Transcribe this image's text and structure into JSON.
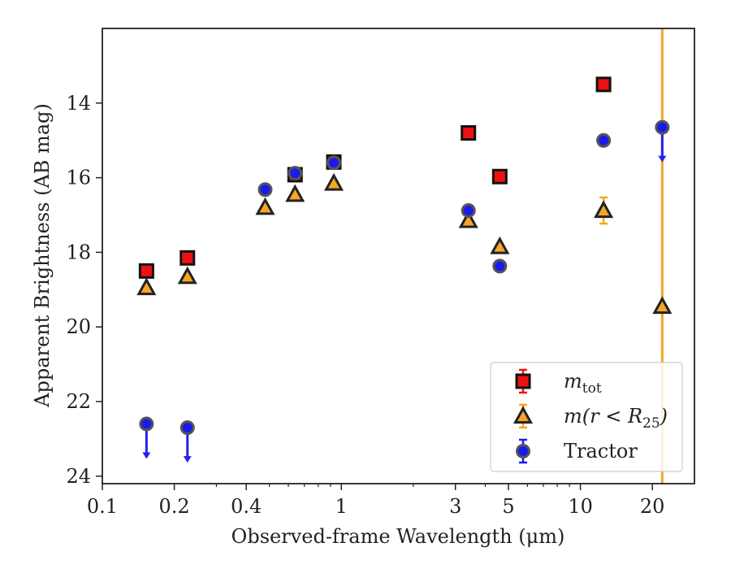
{
  "chart_data": {
    "type": "scatter",
    "xlabel": "Observed-frame Wavelength (μm)",
    "ylabel": "Apparent Brightness (AB mag)",
    "xscale": "log",
    "xlim": [
      0.1,
      30
    ],
    "ylim": [
      24.2,
      12.0
    ],
    "y_inverted": true,
    "xticks": [
      {
        "value": 0.1,
        "label": "0.1"
      },
      {
        "value": 0.2,
        "label": "0.2"
      },
      {
        "value": 0.4,
        "label": "0.4"
      },
      {
        "value": 1,
        "label": "1"
      },
      {
        "value": 3,
        "label": "3"
      },
      {
        "value": 5,
        "label": "5"
      },
      {
        "value": 10,
        "label": "10"
      },
      {
        "value": 20,
        "label": "20"
      }
    ],
    "yticks": [
      {
        "value": 14,
        "label": "14"
      },
      {
        "value": 16,
        "label": "16"
      },
      {
        "value": 18,
        "label": "18"
      },
      {
        "value": 20,
        "label": "20"
      },
      {
        "value": 22,
        "label": "22"
      },
      {
        "value": 24,
        "label": "24"
      }
    ],
    "vline": {
      "x": 22.0,
      "color": "#f5a623"
    },
    "legend_position": "lower right",
    "series": [
      {
        "name": "m_tot",
        "legend_main": "m",
        "legend_sub": "tot",
        "marker": "square",
        "fill": "#ee1111",
        "edge": "#111111",
        "points": [
          {
            "x": 0.153,
            "y": 18.5
          },
          {
            "x": 0.227,
            "y": 18.15
          },
          {
            "x": 0.64,
            "y": 15.92
          },
          {
            "x": 0.93,
            "y": 15.58
          },
          {
            "x": 3.4,
            "y": 14.8
          },
          {
            "x": 4.6,
            "y": 15.97
          },
          {
            "x": 12.5,
            "y": 13.5
          }
        ]
      },
      {
        "name": "m(r<R25)",
        "legend_main": "m(r < R",
        "legend_sub": "25",
        "legend_tail": ")",
        "marker": "triangle",
        "fill": "#f5a623",
        "edge": "#222222",
        "points": [
          {
            "x": 0.153,
            "y": 18.95
          },
          {
            "x": 0.227,
            "y": 18.65
          },
          {
            "x": 0.48,
            "y": 16.8
          },
          {
            "x": 0.64,
            "y": 16.45
          },
          {
            "x": 0.93,
            "y": 16.15
          },
          {
            "x": 3.4,
            "y": 17.15
          },
          {
            "x": 4.6,
            "y": 17.85
          },
          {
            "x": 12.5,
            "y": 16.88,
            "err": 0.35
          },
          {
            "x": 22.0,
            "y": 19.45
          }
        ]
      },
      {
        "name": "Tractor",
        "legend_main": "Tractor",
        "marker": "circle",
        "fill": "#1a1aee",
        "edge": "#555555",
        "points": [
          {
            "x": 0.153,
            "y": 22.6,
            "upper_limit": true
          },
          {
            "x": 0.227,
            "y": 22.7,
            "upper_limit": true
          },
          {
            "x": 0.48,
            "y": 16.32
          },
          {
            "x": 0.64,
            "y": 15.88
          },
          {
            "x": 0.93,
            "y": 15.6
          },
          {
            "x": 3.4,
            "y": 16.88
          },
          {
            "x": 4.6,
            "y": 18.37
          },
          {
            "x": 12.5,
            "y": 15.0
          },
          {
            "x": 22.0,
            "y": 14.65,
            "upper_limit": true
          }
        ]
      }
    ]
  }
}
